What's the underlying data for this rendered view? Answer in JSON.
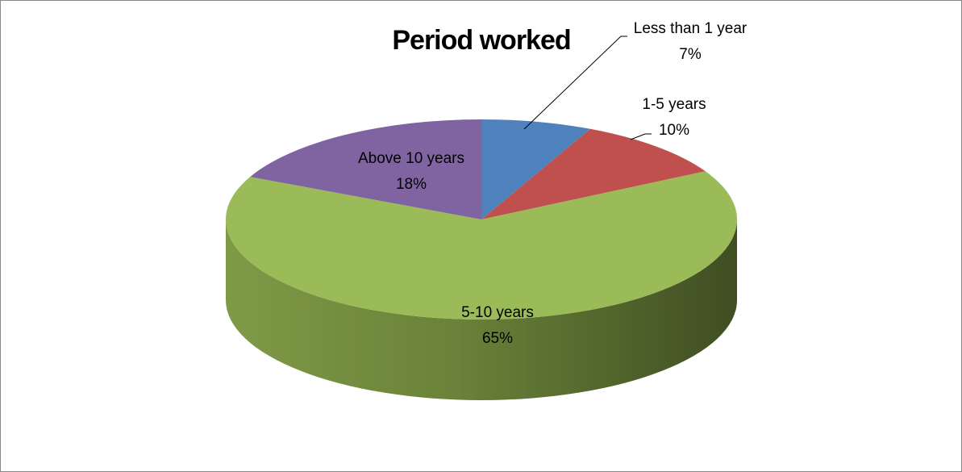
{
  "chart_data": {
    "type": "pie",
    "title": "Period worked",
    "categories": [
      "Less than 1 year",
      "1-5 years",
      "5-10 years",
      "Above 10 years"
    ],
    "values": [
      7,
      10,
      65,
      18
    ],
    "value_labels": [
      "7%",
      "10%",
      "65%",
      "18%"
    ],
    "colors": [
      "#4f81bd",
      "#c0504d",
      "#9bbb59",
      "#8064a2"
    ]
  }
}
